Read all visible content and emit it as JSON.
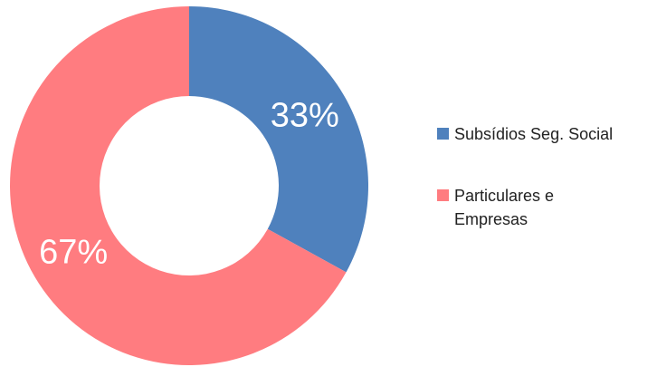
{
  "chart_data": {
    "type": "donut",
    "categories": [
      "Subsídios Seg. Social",
      "Particulares e Empresas"
    ],
    "values": [
      33,
      67
    ],
    "value_labels": [
      "33%",
      "67%"
    ],
    "colors": [
      "#4f81bd",
      "#ff7c80"
    ],
    "legend": "right"
  }
}
